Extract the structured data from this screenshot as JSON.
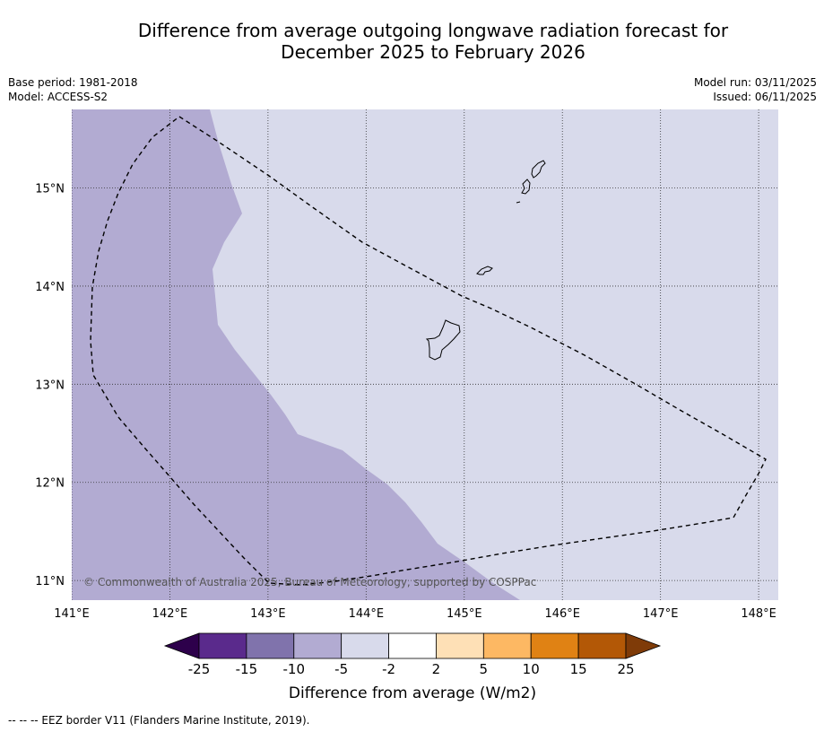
{
  "title": {
    "line1": "Difference from average outgoing longwave radiation forecast for",
    "line2": "December 2025 to February 2026"
  },
  "meta": {
    "base_period": "Base period: 1981-2018",
    "model": "Model: ACCESS-S2",
    "model_run": "Model run: 03/11/2025",
    "issued": "Issued: 06/11/2025"
  },
  "map": {
    "extent": {
      "lon_min": 141.0,
      "lon_max": 148.2,
      "lat_min": 10.8,
      "lat_max": 15.8
    },
    "lon_ticks": [
      {
        "value": 141,
        "label": "141°E"
      },
      {
        "value": 142,
        "label": "142°E"
      },
      {
        "value": 143,
        "label": "143°E"
      },
      {
        "value": 144,
        "label": "144°E"
      },
      {
        "value": 145,
        "label": "145°E"
      },
      {
        "value": 146,
        "label": "146°E"
      },
      {
        "value": 147,
        "label": "147°E"
      },
      {
        "value": 148,
        "label": "148°E"
      }
    ],
    "lat_ticks": [
      {
        "value": 15,
        "label": "15°N"
      },
      {
        "value": 14,
        "label": "14°N"
      },
      {
        "value": 13,
        "label": "13°N"
      },
      {
        "value": 12,
        "label": "12°N"
      },
      {
        "value": 11,
        "label": "11°N"
      }
    ],
    "background_band": "-5 to -2",
    "region_band": "-10 to -5",
    "copyright": "© Commonwealth of Australia 2025, Bureau of Meteorology, supported by COSPPac"
  },
  "colorbar": {
    "title": "Difference from average (W/m2)",
    "ticks": [
      "-25",
      "-15",
      "-10",
      "-5",
      "-2",
      "2",
      "5",
      "10",
      "15",
      "25"
    ],
    "colors": [
      "#5a2a8c",
      "#8073ac",
      "#b2abd2",
      "#d8daeb",
      "#ffffff",
      "#fee0b6",
      "#fdb863",
      "#e08214",
      "#b35806"
    ],
    "extend_low_color": "#2d004b",
    "extend_high_color": "#7f3b08"
  },
  "footnote": "--  --  -- EEZ border V11 (Flanders Marine Institute, 2019)."
}
